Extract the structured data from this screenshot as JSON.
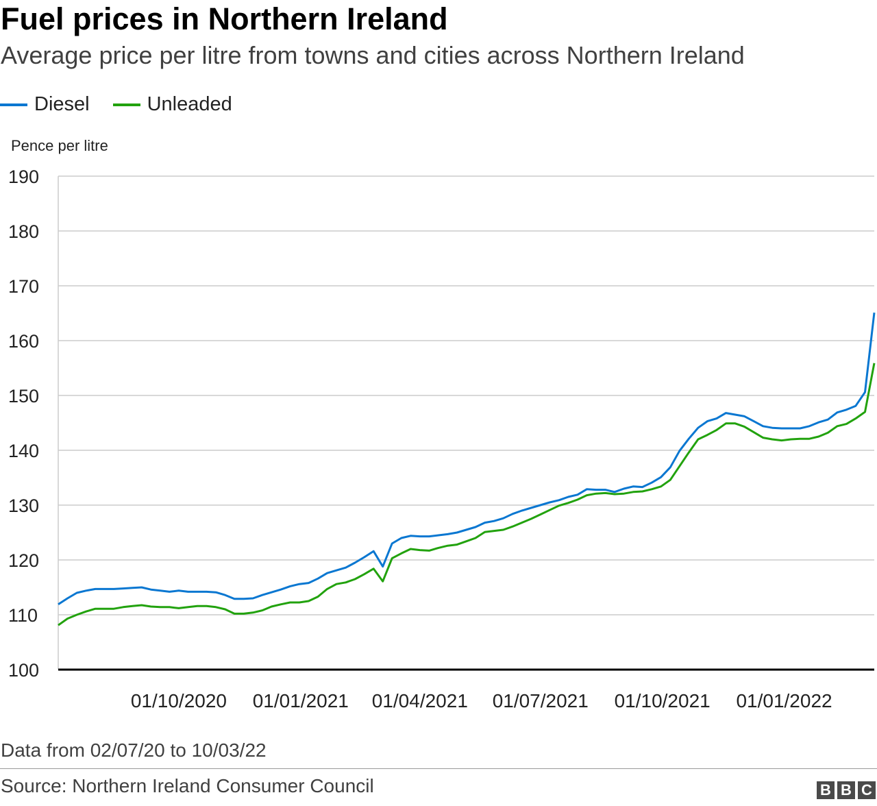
{
  "header": {
    "title": "Fuel prices in Northern Ireland",
    "subtitle": "Average price per litre from towns and cities across Northern Ireland"
  },
  "footer": {
    "note": "Data from 02/07/20 to 10/03/22",
    "source": "Source: Northern Ireland Consumer Council",
    "logo": "BBC"
  },
  "chart_data": {
    "type": "line",
    "title": "Fuel prices in Northern Ireland",
    "subtitle": "Average price per litre from towns and cities across Northern Ireland",
    "ylabel": "Pence per litre",
    "xlabel": "",
    "ylim": [
      100,
      190
    ],
    "yticks": [
      "100",
      "110",
      "120",
      "130",
      "140",
      "150",
      "160",
      "170",
      "180",
      "190"
    ],
    "xlim": [
      "02/07/20",
      "10/03/22"
    ],
    "xticks": [
      "01/10/2020",
      "01/01/2021",
      "01/04/2021",
      "01/07/2021",
      "01/10/2021",
      "01/01/2022"
    ],
    "grid": "horizontal",
    "legend": "top-left",
    "x": [
      "02/07/20",
      "09/07/20",
      "16/07/20",
      "23/07/20",
      "30/07/20",
      "06/08/20",
      "13/08/20",
      "20/08/20",
      "27/08/20",
      "03/09/20",
      "10/09/20",
      "17/09/20",
      "24/09/20",
      "01/10/20",
      "08/10/20",
      "15/10/20",
      "22/10/20",
      "29/10/20",
      "05/11/20",
      "12/11/20",
      "19/11/20",
      "26/11/20",
      "03/12/20",
      "10/12/20",
      "17/12/20",
      "24/12/20",
      "31/12/20",
      "07/01/21",
      "14/01/21",
      "21/01/21",
      "28/01/21",
      "04/02/21",
      "11/02/21",
      "18/02/21",
      "25/02/21",
      "04/03/21",
      "11/03/21",
      "18/03/21",
      "25/03/21",
      "01/04/21",
      "08/04/21",
      "15/04/21",
      "22/04/21",
      "29/04/21",
      "06/05/21",
      "13/05/21",
      "20/05/21",
      "27/05/21",
      "03/06/21",
      "10/06/21",
      "17/06/21",
      "24/06/21",
      "01/07/21",
      "08/07/21",
      "15/07/21",
      "22/07/21",
      "29/07/21",
      "05/08/21",
      "12/08/21",
      "19/08/21",
      "26/08/21",
      "02/09/21",
      "09/09/21",
      "16/09/21",
      "23/09/21",
      "30/09/21",
      "07/10/21",
      "14/10/21",
      "21/10/21",
      "28/10/21",
      "04/11/21",
      "11/11/21",
      "18/11/21",
      "25/11/21",
      "02/12/21",
      "09/12/21",
      "16/12/21",
      "23/12/21",
      "30/12/21",
      "06/01/22",
      "13/01/22",
      "20/01/22",
      "27/01/22",
      "03/02/22",
      "10/02/22",
      "17/02/22",
      "24/02/22",
      "03/03/22",
      "10/03/22"
    ],
    "series": [
      {
        "name": "Diesel",
        "color": "#0a77d1",
        "values": [
          111.9,
          113.0,
          114.0,
          114.4,
          114.7,
          114.7,
          114.7,
          114.8,
          114.9,
          115.0,
          114.6,
          114.4,
          114.2,
          114.4,
          114.2,
          114.2,
          114.2,
          114.1,
          113.6,
          112.9,
          112.9,
          113.0,
          113.6,
          114.1,
          114.6,
          115.2,
          115.6,
          115.8,
          116.6,
          117.6,
          118.1,
          118.6,
          119.5,
          120.5,
          121.6,
          118.8,
          123.0,
          124.0,
          124.4,
          124.3,
          124.3,
          124.5,
          124.7,
          125.0,
          125.5,
          126.0,
          126.8,
          127.1,
          127.6,
          128.4,
          129.0,
          129.5,
          130.0,
          130.5,
          130.9,
          131.5,
          131.9,
          132.9,
          132.8,
          132.8,
          132.4,
          133.0,
          133.4,
          133.3,
          134.1,
          135.1,
          136.9,
          139.9,
          142.1,
          144.1,
          145.3,
          145.8,
          146.8,
          146.5,
          146.2,
          145.3,
          144.4,
          144.1,
          144.0,
          144.0,
          144.0,
          144.4,
          145.1,
          145.6,
          146.9,
          147.4,
          148.1,
          150.6,
          165.1
        ]
      },
      {
        "name": "Unleaded",
        "color": "#22a20e",
        "values": [
          108.1,
          109.3,
          110.0,
          110.6,
          111.1,
          111.1,
          111.1,
          111.4,
          111.6,
          111.75,
          111.5,
          111.4,
          111.4,
          111.2,
          111.4,
          111.6,
          111.6,
          111.4,
          111.0,
          110.2,
          110.2,
          110.4,
          110.8,
          111.5,
          111.9,
          112.25,
          112.25,
          112.5,
          113.3,
          114.7,
          115.6,
          115.9,
          116.5,
          117.4,
          118.4,
          116.1,
          120.3,
          121.2,
          122.0,
          121.8,
          121.7,
          122.2,
          122.6,
          122.8,
          123.4,
          124.0,
          125.1,
          125.3,
          125.5,
          126.1,
          126.8,
          127.5,
          128.3,
          129.1,
          129.9,
          130.4,
          131.0,
          131.8,
          132.1,
          132.2,
          132.0,
          132.1,
          132.4,
          132.5,
          132.9,
          133.4,
          134.6,
          137.1,
          139.6,
          142.0,
          142.8,
          143.7,
          144.9,
          144.9,
          144.3,
          143.3,
          142.3,
          142.0,
          141.8,
          142.0,
          142.1,
          142.1,
          142.5,
          143.2,
          144.4,
          144.8,
          145.8,
          147.0,
          155.9
        ]
      }
    ]
  }
}
